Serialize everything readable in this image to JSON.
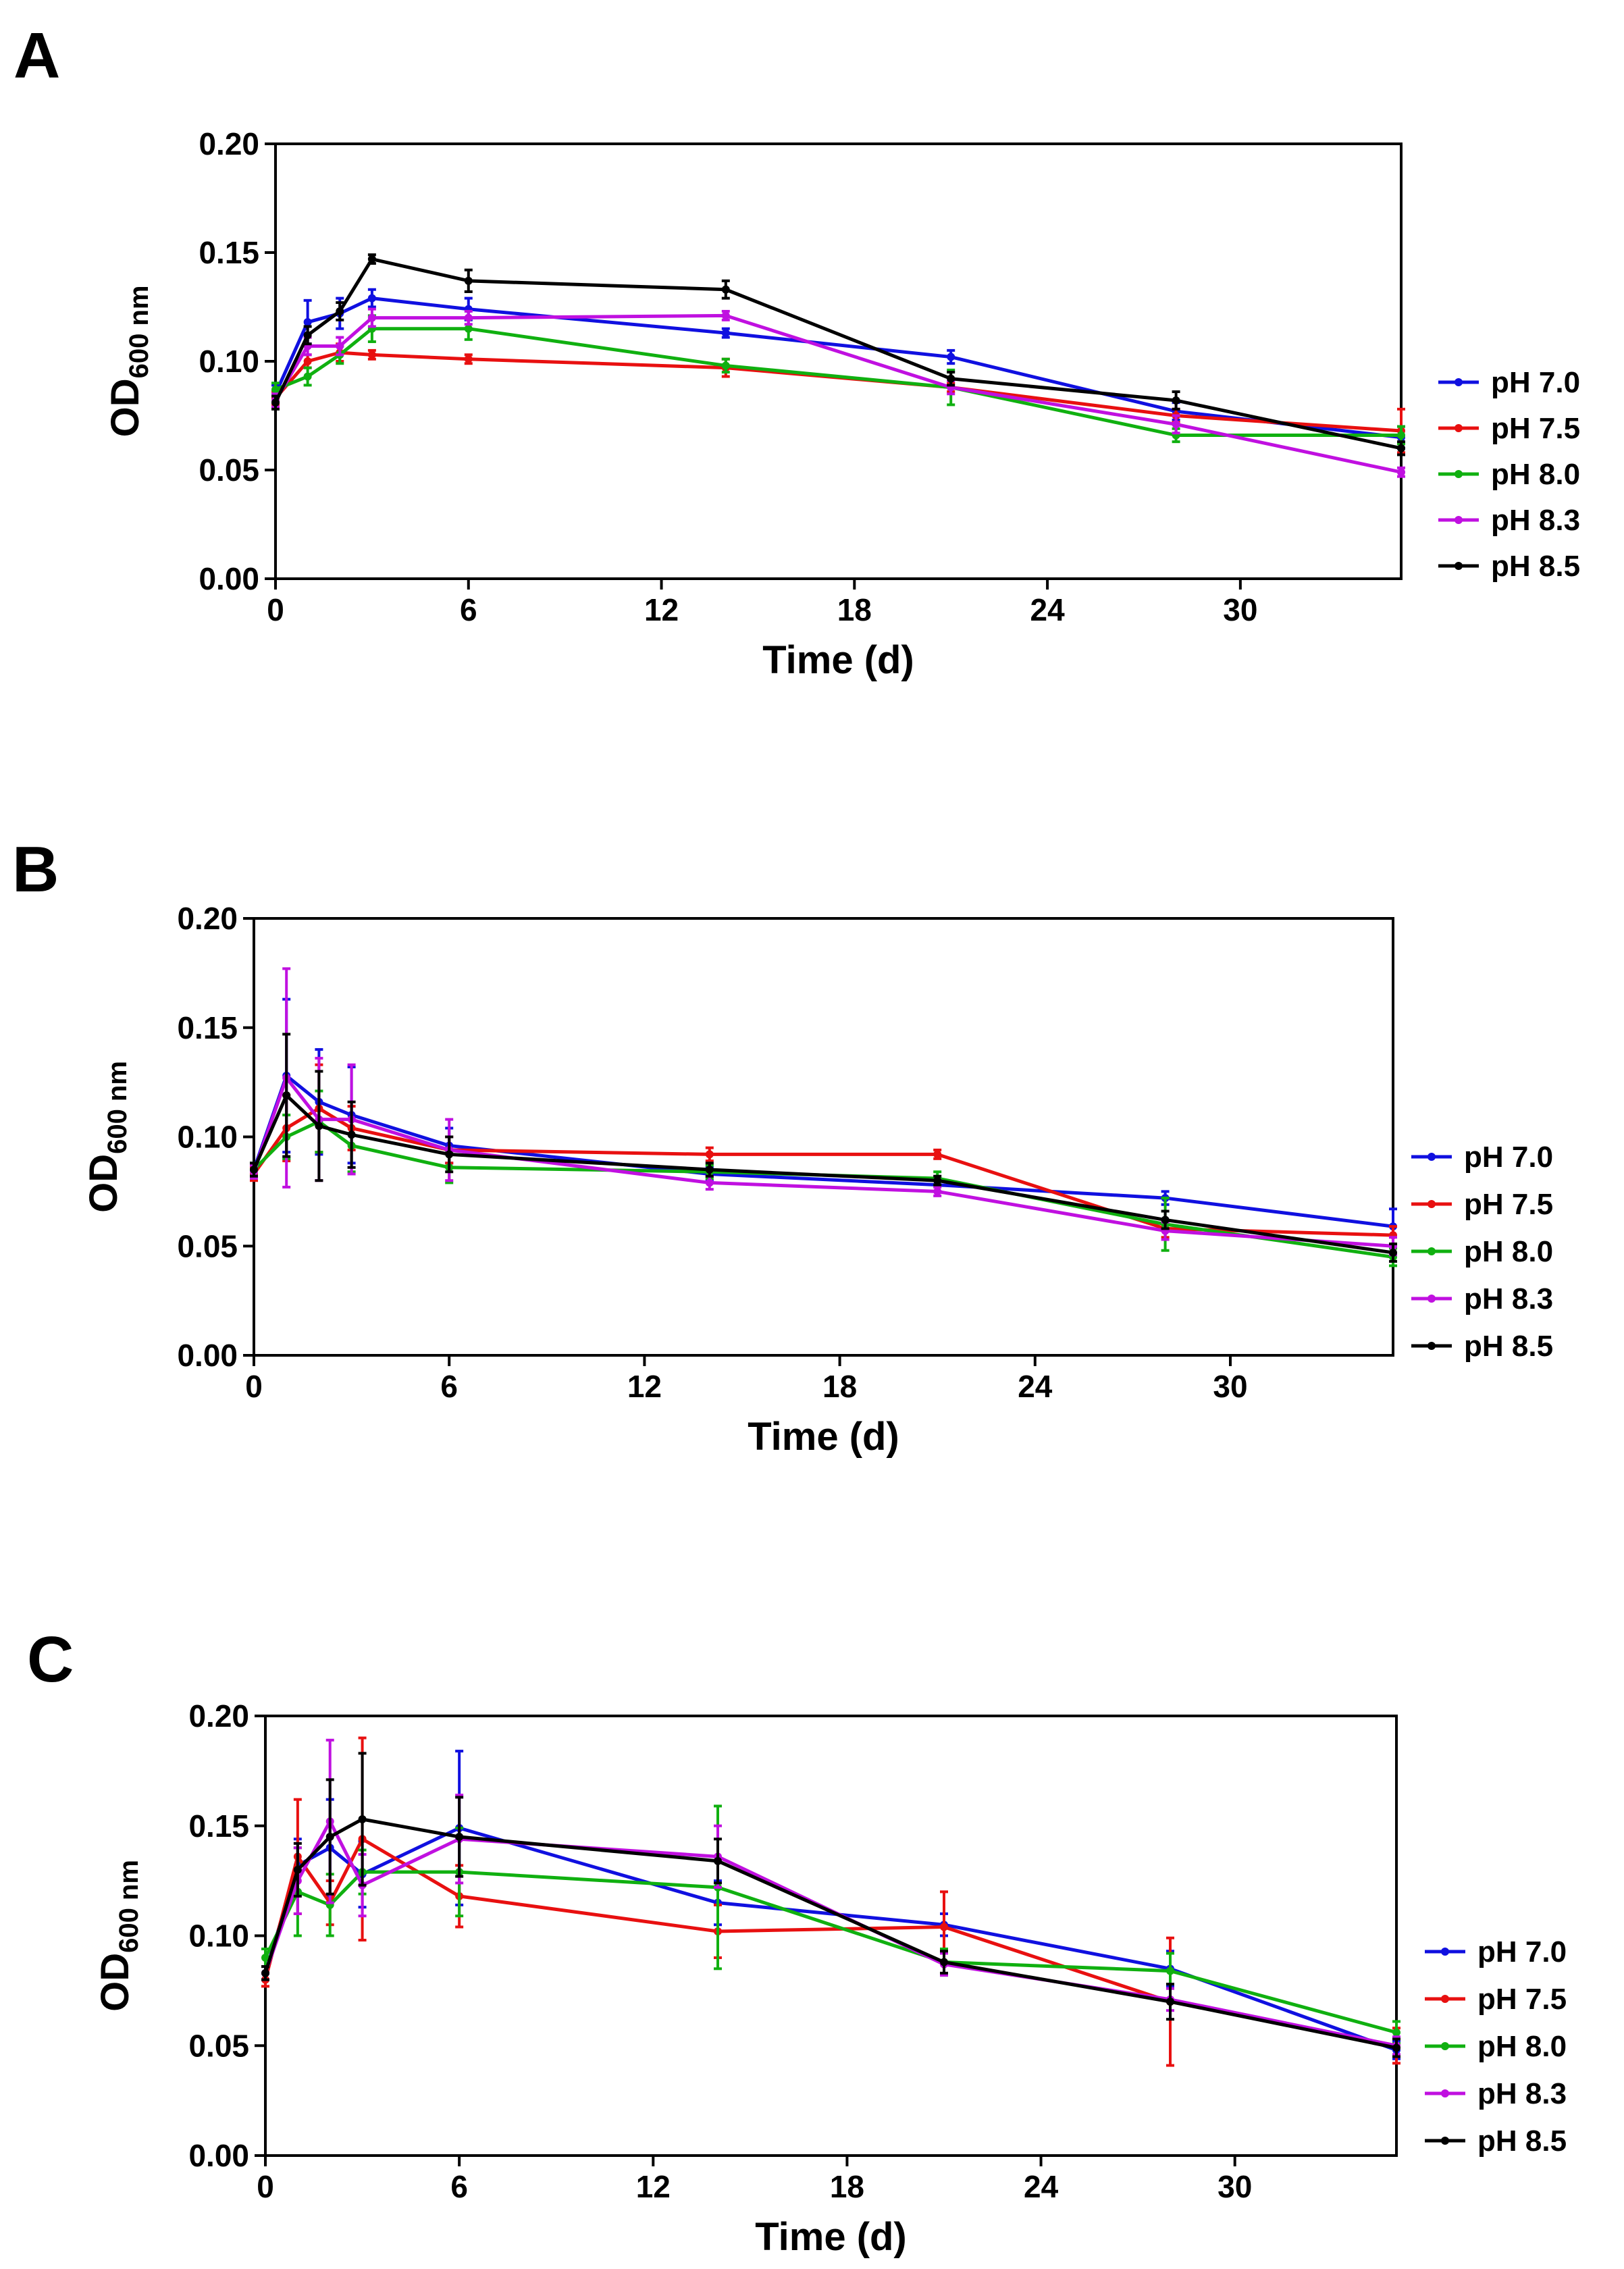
{
  "chart_data": [
    {
      "panel": "A",
      "type": "line",
      "xlabel": "Time (d)",
      "ylabel_main": "OD",
      "ylabel_sub": "600 nm",
      "xlim": [
        0,
        35
      ],
      "ylim": [
        0,
        0.2
      ],
      "xticks": [
        0,
        6,
        12,
        18,
        24,
        30
      ],
      "yticks": [
        0.0,
        0.05,
        0.1,
        0.15,
        0.2
      ],
      "ytick_labels": [
        "0.00",
        "0.05",
        "0.10",
        "0.15",
        "0.20"
      ],
      "grid": false,
      "legend_position": "right",
      "x": [
        0,
        1,
        2,
        3,
        6,
        14,
        21,
        28,
        35
      ],
      "series": [
        {
          "name": "pH 7.0",
          "color": "#1010e0",
          "values": [
            0.085,
            0.118,
            0.122,
            0.129,
            0.124,
            0.113,
            0.102,
            0.077,
            0.065
          ],
          "errors": [
            0.004,
            0.01,
            0.007,
            0.004,
            0.005,
            0.002,
            0.003,
            0.004,
            0.005
          ]
        },
        {
          "name": "pH 7.5",
          "color": "#e81010",
          "values": [
            0.083,
            0.1,
            0.104,
            0.103,
            0.101,
            0.097,
            0.088,
            0.075,
            0.068
          ],
          "errors": [
            0.003,
            0.003,
            0.004,
            0.002,
            0.002,
            0.004,
            0.002,
            0.003,
            0.01
          ]
        },
        {
          "name": "pH 8.0",
          "color": "#10b010",
          "values": [
            0.087,
            0.093,
            0.103,
            0.115,
            0.115,
            0.098,
            0.088,
            0.066,
            0.066
          ],
          "errors": [
            0.003,
            0.004,
            0.004,
            0.006,
            0.005,
            0.003,
            0.008,
            0.003,
            0.004
          ]
        },
        {
          "name": "pH 8.3",
          "color": "#c010e0",
          "values": [
            0.082,
            0.107,
            0.107,
            0.12,
            0.12,
            0.121,
            0.088,
            0.071,
            0.049
          ],
          "errors": [
            0.003,
            0.004,
            0.004,
            0.004,
            0.003,
            0.002,
            0.003,
            0.004,
            0.002
          ]
        },
        {
          "name": "pH 8.5",
          "color": "#000000",
          "values": [
            0.081,
            0.112,
            0.123,
            0.147,
            0.137,
            0.133,
            0.092,
            0.082,
            0.06
          ],
          "errors": [
            0.003,
            0.004,
            0.004,
            0.002,
            0.005,
            0.004,
            0.003,
            0.004,
            0.003
          ]
        }
      ]
    },
    {
      "panel": "B",
      "type": "line",
      "xlabel": "Time (d)",
      "ylabel_main": "OD",
      "ylabel_sub": "600 nm",
      "xlim": [
        0,
        35
      ],
      "ylim": [
        0,
        0.2
      ],
      "xticks": [
        0,
        6,
        12,
        18,
        24,
        30
      ],
      "yticks": [
        0.0,
        0.05,
        0.1,
        0.15,
        0.2
      ],
      "ytick_labels": [
        "0.00",
        "0.05",
        "0.10",
        "0.15",
        "0.20"
      ],
      "grid": false,
      "legend_position": "right",
      "x": [
        0,
        1,
        2,
        3,
        6,
        14,
        21,
        28,
        35
      ],
      "series": [
        {
          "name": "pH 7.0",
          "color": "#1010e0",
          "values": [
            0.085,
            0.128,
            0.116,
            0.11,
            0.096,
            0.083,
            0.078,
            0.072,
            0.059
          ],
          "errors": [
            0.003,
            0.035,
            0.024,
            0.022,
            0.008,
            0.003,
            0.003,
            0.003,
            0.008
          ]
        },
        {
          "name": "pH 7.5",
          "color": "#e81010",
          "values": [
            0.083,
            0.104,
            0.113,
            0.104,
            0.094,
            0.092,
            0.092,
            0.058,
            0.055
          ],
          "errors": [
            0.003,
            0.015,
            0.02,
            0.01,
            0.006,
            0.003,
            0.002,
            0.004,
            0.004
          ]
        },
        {
          "name": "pH 8.0",
          "color": "#10b010",
          "values": [
            0.085,
            0.1,
            0.107,
            0.096,
            0.086,
            0.084,
            0.081,
            0.06,
            0.045
          ],
          "errors": [
            0.003,
            0.01,
            0.014,
            0.012,
            0.007,
            0.003,
            0.003,
            0.012,
            0.004
          ]
        },
        {
          "name": "pH 8.3",
          "color": "#c010e0",
          "values": [
            0.084,
            0.127,
            0.108,
            0.108,
            0.094,
            0.079,
            0.075,
            0.057,
            0.05
          ],
          "errors": [
            0.003,
            0.05,
            0.028,
            0.025,
            0.014,
            0.003,
            0.002,
            0.004,
            0.004
          ]
        },
        {
          "name": "pH 8.5",
          "color": "#000000",
          "values": [
            0.085,
            0.119,
            0.105,
            0.101,
            0.092,
            0.085,
            0.08,
            0.062,
            0.047
          ],
          "errors": [
            0.003,
            0.028,
            0.025,
            0.015,
            0.008,
            0.003,
            0.002,
            0.004,
            0.004
          ]
        }
      ]
    },
    {
      "panel": "C",
      "type": "line",
      "xlabel": "Time (d)",
      "ylabel_main": "OD",
      "ylabel_sub": "600 nm",
      "xlim": [
        0,
        35
      ],
      "ylim": [
        0,
        0.2
      ],
      "xticks": [
        0,
        6,
        12,
        18,
        24,
        30
      ],
      "yticks": [
        0.0,
        0.05,
        0.1,
        0.15,
        0.2
      ],
      "ytick_labels": [
        "0.00",
        "0.05",
        "0.10",
        "0.15",
        "0.20"
      ],
      "grid": false,
      "legend_position": "right",
      "x": [
        0,
        1,
        2,
        3,
        6,
        14,
        21,
        28,
        35
      ],
      "series": [
        {
          "name": "pH 7.0",
          "color": "#1010e0",
          "values": [
            0.083,
            0.132,
            0.14,
            0.128,
            0.149,
            0.115,
            0.105,
            0.085,
            0.048
          ],
          "errors": [
            0.003,
            0.012,
            0.022,
            0.015,
            0.035,
            0.01,
            0.005,
            0.008,
            0.004
          ]
        },
        {
          "name": "pH 7.5",
          "color": "#e81010",
          "values": [
            0.08,
            0.136,
            0.115,
            0.144,
            0.118,
            0.102,
            0.104,
            0.07,
            0.05
          ],
          "errors": [
            0.003,
            0.026,
            0.01,
            0.046,
            0.014,
            0.012,
            0.016,
            0.029,
            0.008
          ]
        },
        {
          "name": "pH 8.0",
          "color": "#10b010",
          "values": [
            0.09,
            0.12,
            0.114,
            0.129,
            0.129,
            0.122,
            0.088,
            0.084,
            0.056
          ],
          "errors": [
            0.004,
            0.02,
            0.014,
            0.01,
            0.02,
            0.037,
            0.006,
            0.008,
            0.005
          ]
        },
        {
          "name": "pH 8.3",
          "color": "#c010e0",
          "values": [
            0.083,
            0.125,
            0.152,
            0.123,
            0.144,
            0.136,
            0.087,
            0.071,
            0.05
          ],
          "errors": [
            0.003,
            0.015,
            0.037,
            0.014,
            0.02,
            0.014,
            0.005,
            0.005,
            0.004
          ]
        },
        {
          "name": "pH 8.5",
          "color": "#000000",
          "values": [
            0.083,
            0.13,
            0.145,
            0.153,
            0.145,
            0.134,
            0.088,
            0.07,
            0.049
          ],
          "errors": [
            0.003,
            0.012,
            0.026,
            0.03,
            0.018,
            0.01,
            0.005,
            0.008,
            0.004
          ]
        }
      ]
    }
  ]
}
